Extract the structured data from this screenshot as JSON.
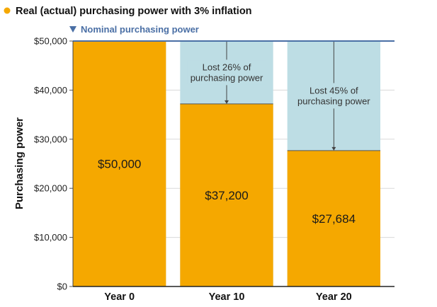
{
  "chart_data": {
    "type": "bar",
    "categories": [
      "Year 0",
      "Year 10",
      "Year 20"
    ],
    "series": [
      {
        "name": "Real (actual) purchasing power with 3% inflation",
        "values": [
          50000,
          37200,
          27684
        ]
      },
      {
        "name": "Nominal purchasing power",
        "values": [
          50000,
          50000,
          50000
        ]
      }
    ],
    "data_labels": [
      "$50,000",
      "$37,200",
      "$27,684"
    ],
    "annotations": [
      {
        "category": "Year 10",
        "lines": [
          "Lost 26% of",
          "purchasing power"
        ]
      },
      {
        "category": "Year 20",
        "lines": [
          "Lost 45% of",
          "purchasing power"
        ]
      }
    ],
    "ylabel": "Purchasing power",
    "xlabel": "",
    "ylim": [
      0,
      50000
    ],
    "yticks": [
      0,
      10000,
      20000,
      30000,
      40000,
      50000
    ],
    "ytick_labels": [
      "$0",
      "$10,000",
      "$20,000",
      "$30,000",
      "$40,000",
      "$50,000"
    ],
    "grid": true,
    "legend_position": "top-left",
    "colors": {
      "real": "#F5A800",
      "nominal": "#BDDDE4",
      "nominal_line": "#4A6FA5",
      "text": "#222222"
    }
  }
}
